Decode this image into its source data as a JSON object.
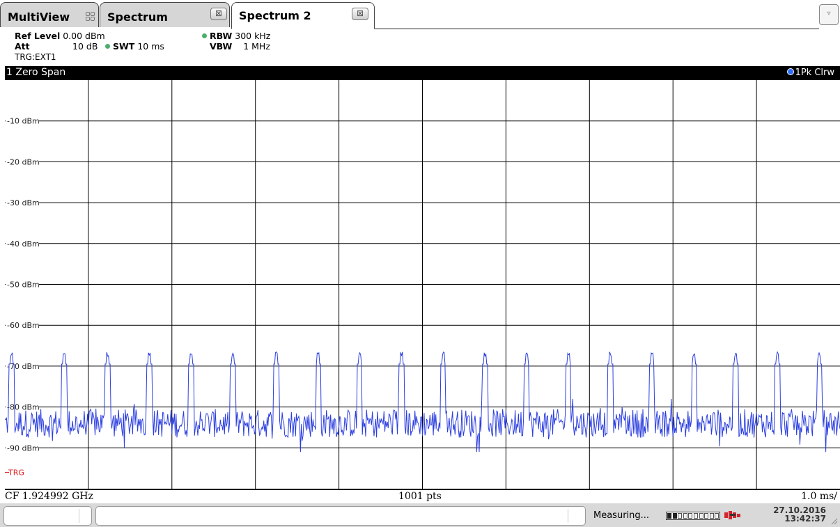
{
  "tabs": [
    {
      "label": "MultiView",
      "icon": "grid-icon"
    },
    {
      "label": "Spectrum",
      "close": "⊠"
    },
    {
      "label": "Spectrum 2",
      "close": "⊠",
      "active": true
    }
  ],
  "dropdown_glyph": "▿",
  "params": {
    "ref_level_label": "Ref Level",
    "ref_level_value": "0.00 dBm",
    "att_label": "Att",
    "att_value": "10 dB",
    "swt_label": "SWT",
    "swt_value": "10 ms",
    "rbw_label": "RBW",
    "rbw_value": "300 kHz",
    "vbw_label": "VBW",
    "vbw_value": "1 MHz",
    "trigger": "TRG:EXT1"
  },
  "diagram": {
    "title": "1 Zero Span",
    "trace_label": "1Pk Clrw",
    "trigger_marker": "TRG",
    "footer_left": "CF 1.924992 GHz",
    "footer_center": "1001 pts",
    "footer_right": "1.0 ms/"
  },
  "chart_data": {
    "type": "line",
    "xlabel": "",
    "ylabel": "",
    "x_divisions": 10,
    "ylim": [
      -100,
      0
    ],
    "y_ticks": [
      -10,
      -20,
      -30,
      -40,
      -50,
      -60,
      -70,
      -80,
      -90
    ],
    "y_tick_labels": [
      "-10 dBm",
      "-20 dBm",
      "-30 dBm",
      "-40 dBm",
      "-50 dBm",
      "-60 dBm",
      "-70 dBm",
      "-80 dBm",
      "-90 dBm"
    ],
    "grid": true,
    "trigger_level_dbm": -96,
    "series": [
      {
        "name": "1Pk Clrw",
        "color": "#2b3ee0",
        "points": 1001,
        "noise_floor_dbm": -84,
        "noise_range_dbm": [
          -91,
          -78
        ],
        "burst_peak_dbm": -66.5,
        "burst_start_times_ms": [
          0.05,
          0.68,
          1.2,
          1.7,
          2.2,
          2.7,
          3.22,
          3.72,
          4.22,
          4.72,
          5.22,
          5.72,
          6.22,
          6.72,
          7.22,
          7.72,
          8.22,
          8.72,
          9.22,
          9.72
        ],
        "burst_width_ms": 0.06
      }
    ]
  },
  "status": {
    "text": "Measuring...",
    "progress": 0.2,
    "date": "27.10.2016",
    "time": "13:42:37"
  },
  "colors": {
    "trace": "#2b3ee0",
    "trigger": "#e02020",
    "grid": "#000000",
    "title_bar": "#000000",
    "tab_inactive": "#d6d6d6"
  }
}
